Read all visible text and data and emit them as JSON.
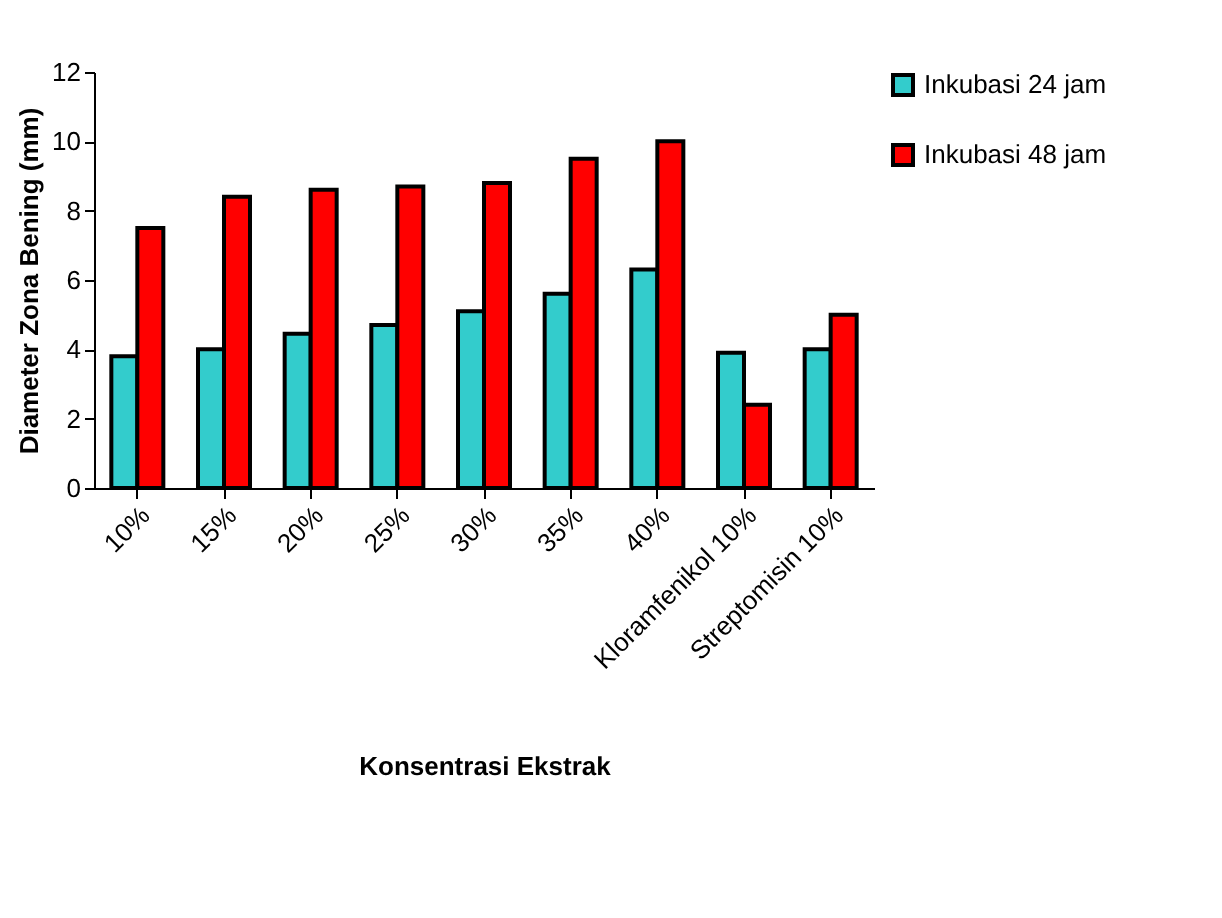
{
  "chart_data": {
    "type": "bar",
    "xlabel": "Konsentrasi Ekstrak",
    "ylabel": "Diameter Zona Bening (mm)",
    "categories": [
      "10%",
      "15%",
      "20%",
      "25%",
      "30%",
      "35%",
      "40%",
      "Kloramfenikol 10%",
      "Streptomisin 10%"
    ],
    "series": [
      {
        "name": "Inkubasi 24 jam",
        "color": "#33cccc",
        "values": [
          3.8,
          4.0,
          4.45,
          4.7,
          5.1,
          5.6,
          6.3,
          3.9,
          4.0
        ]
      },
      {
        "name": "Inkubasi 48 jam",
        "color": "#ff0000",
        "values": [
          7.5,
          8.4,
          8.6,
          8.7,
          8.8,
          9.5,
          10.0,
          2.4,
          5.0
        ]
      }
    ],
    "ylim": [
      0,
      12
    ],
    "yticks": [
      0,
      2,
      4,
      6,
      8,
      10,
      12
    ],
    "grid": false,
    "legend": "right"
  }
}
